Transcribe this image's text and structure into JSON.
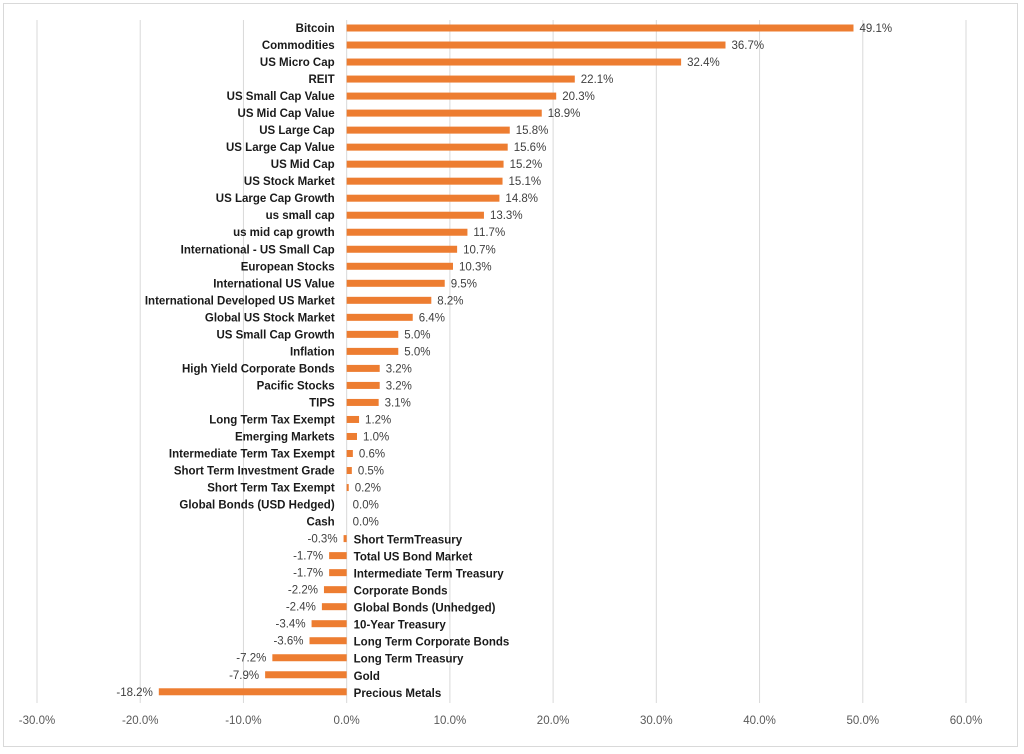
{
  "chart_data": {
    "type": "bar",
    "orientation": "horizontal",
    "title": "",
    "xlabel": "",
    "ylabel": "",
    "xlim": [
      -30,
      60
    ],
    "grid": true,
    "legend": "none",
    "bar_color": "#ED7D31",
    "grid_color": "#d9d9d9",
    "x_ticks": [
      "-30.0%",
      "-20.0%",
      "-10.0%",
      "0.0%",
      "10.0%",
      "20.0%",
      "30.0%",
      "40.0%",
      "50.0%",
      "60.0%"
    ],
    "categories": [
      "Bitcoin",
      "Commodities",
      "US Micro Cap",
      "REIT",
      "US Small Cap Value",
      "US Mid Cap Value",
      "US Large Cap",
      "US Large Cap Value",
      "US Mid Cap",
      "US Stock Market",
      "US Large Cap Growth",
      "us small cap",
      "us mid cap growth",
      "International - US Small Cap",
      "European Stocks",
      "International US Value",
      "International Developed US Market",
      "Global US Stock Market",
      "US Small Cap Growth",
      "Inflation",
      "High Yield Corporate Bonds",
      "Pacific Stocks",
      "TIPS",
      "Long Term Tax Exempt",
      "Emerging Markets",
      "Intermediate Term Tax Exempt",
      "Short Term Investment Grade",
      "Short Term Tax Exempt",
      "Global Bonds (USD Hedged)",
      "Cash",
      "Short TermTreasury",
      "Total US Bond Market",
      "Intermediate Term Treasury",
      "Corporate Bonds",
      "Global Bonds (Unhedged)",
      "10-Year Treasury",
      "Long Term Corporate Bonds",
      "Long Term Treasury",
      "Gold",
      "Precious Metals"
    ],
    "values": [
      49.1,
      36.7,
      32.4,
      22.1,
      20.3,
      18.9,
      15.8,
      15.6,
      15.2,
      15.1,
      14.8,
      13.3,
      11.7,
      10.7,
      10.3,
      9.5,
      8.2,
      6.4,
      5.0,
      5.0,
      3.2,
      3.2,
      3.1,
      1.2,
      1.0,
      0.6,
      0.5,
      0.2,
      0.0,
      0.0,
      -0.3,
      -1.7,
      -1.7,
      -2.2,
      -2.4,
      -3.4,
      -3.6,
      -7.2,
      -7.9,
      -18.2
    ],
    "value_labels": [
      "49.1%",
      "36.7%",
      "32.4%",
      "22.1%",
      "20.3%",
      "18.9%",
      "15.8%",
      "15.6%",
      "15.2%",
      "15.1%",
      "14.8%",
      "13.3%",
      "11.7%",
      "10.7%",
      "10.3%",
      "9.5%",
      "8.2%",
      "6.4%",
      "5.0%",
      "5.0%",
      "3.2%",
      "3.2%",
      "3.1%",
      "1.2%",
      "1.0%",
      "0.6%",
      "0.5%",
      "0.2%",
      "0.0%",
      "0.0%",
      "-0.3%",
      "-1.7%",
      "-1.7%",
      "-2.2%",
      "-2.4%",
      "-3.4%",
      "-3.6%",
      "-7.2%",
      "-7.9%",
      "-18.2%"
    ]
  }
}
